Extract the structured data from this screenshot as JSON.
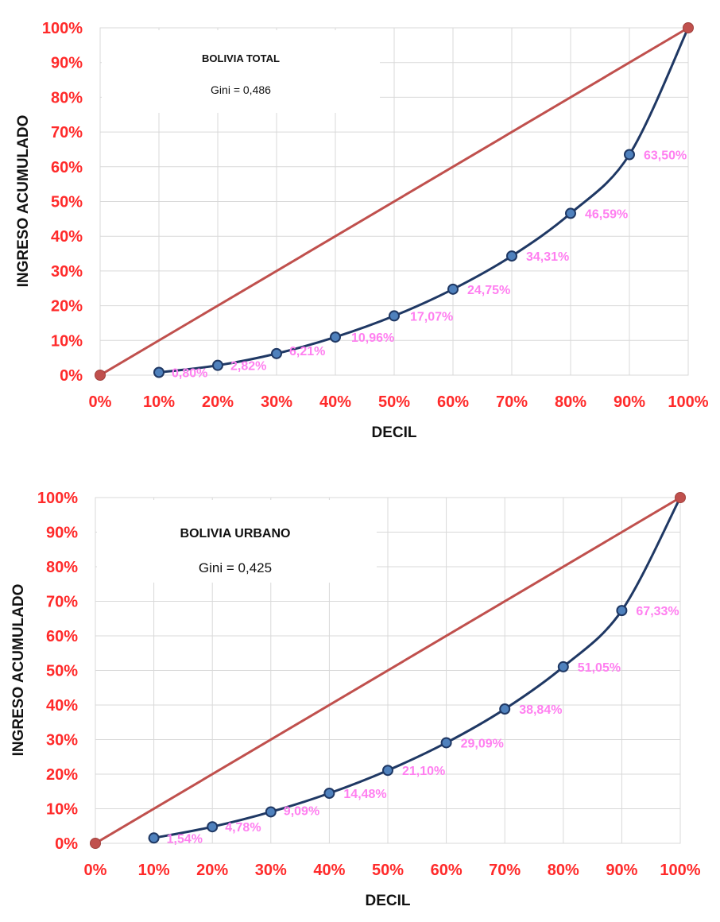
{
  "chart_data": [
    {
      "type": "line",
      "title": "BOLIVIA TOTAL",
      "subtitle": "Gini = 0,486",
      "xlabel": "DECIL",
      "ylabel": "INGRESO ACUMULADO",
      "xlim": [
        0,
        100
      ],
      "ylim": [
        0,
        100
      ],
      "x_ticks": [
        "0%",
        "10%",
        "20%",
        "30%",
        "40%",
        "50%",
        "60%",
        "70%",
        "80%",
        "90%",
        "100%"
      ],
      "y_ticks": [
        "0%",
        "10%",
        "20%",
        "30%",
        "40%",
        "50%",
        "60%",
        "70%",
        "80%",
        "90%",
        "100%"
      ],
      "grid": true,
      "series": [
        {
          "role": "equality",
          "color": "#c0504d",
          "x": [
            0,
            100
          ],
          "y": [
            0,
            100
          ]
        },
        {
          "role": "lorenz",
          "color": "#1f3864",
          "marker_color": "#4f81bd",
          "x": [
            10,
            20,
            30,
            40,
            50,
            60,
            70,
            80,
            90
          ],
          "y": [
            0.8,
            2.82,
            6.21,
            10.96,
            17.07,
            24.75,
            34.31,
            46.59,
            63.5
          ],
          "labels": [
            "0,80%",
            "2,82%",
            "6,21%",
            "10,96%",
            "17,07%",
            "24,75%",
            "34,31%",
            "46,59%",
            "63,50%"
          ]
        }
      ]
    },
    {
      "type": "line",
      "title": "BOLIVIA URBANO",
      "subtitle": "Gini = 0,425",
      "xlabel": "DECIL",
      "ylabel": "INGRESO ACUMULADO",
      "xlim": [
        0,
        100
      ],
      "ylim": [
        0,
        100
      ],
      "x_ticks": [
        "0%",
        "10%",
        "20%",
        "30%",
        "40%",
        "50%",
        "60%",
        "70%",
        "80%",
        "90%",
        "100%"
      ],
      "y_ticks": [
        "0%",
        "10%",
        "20%",
        "30%",
        "40%",
        "50%",
        "60%",
        "70%",
        "80%",
        "90%",
        "100%"
      ],
      "grid": true,
      "series": [
        {
          "role": "equality",
          "color": "#c0504d",
          "x": [
            0,
            100
          ],
          "y": [
            0,
            100
          ]
        },
        {
          "role": "lorenz",
          "color": "#1f3864",
          "marker_color": "#4f81bd",
          "x": [
            10,
            20,
            30,
            40,
            50,
            60,
            70,
            80,
            90
          ],
          "y": [
            1.54,
            4.78,
            9.09,
            14.48,
            21.1,
            29.09,
            38.84,
            51.05,
            67.33
          ],
          "labels": [
            "1,54%",
            "4,78%",
            "9,09%",
            "14,48%",
            "21,10%",
            "29,09%",
            "38,84%",
            "51,05%",
            "67,33%"
          ]
        }
      ]
    }
  ]
}
